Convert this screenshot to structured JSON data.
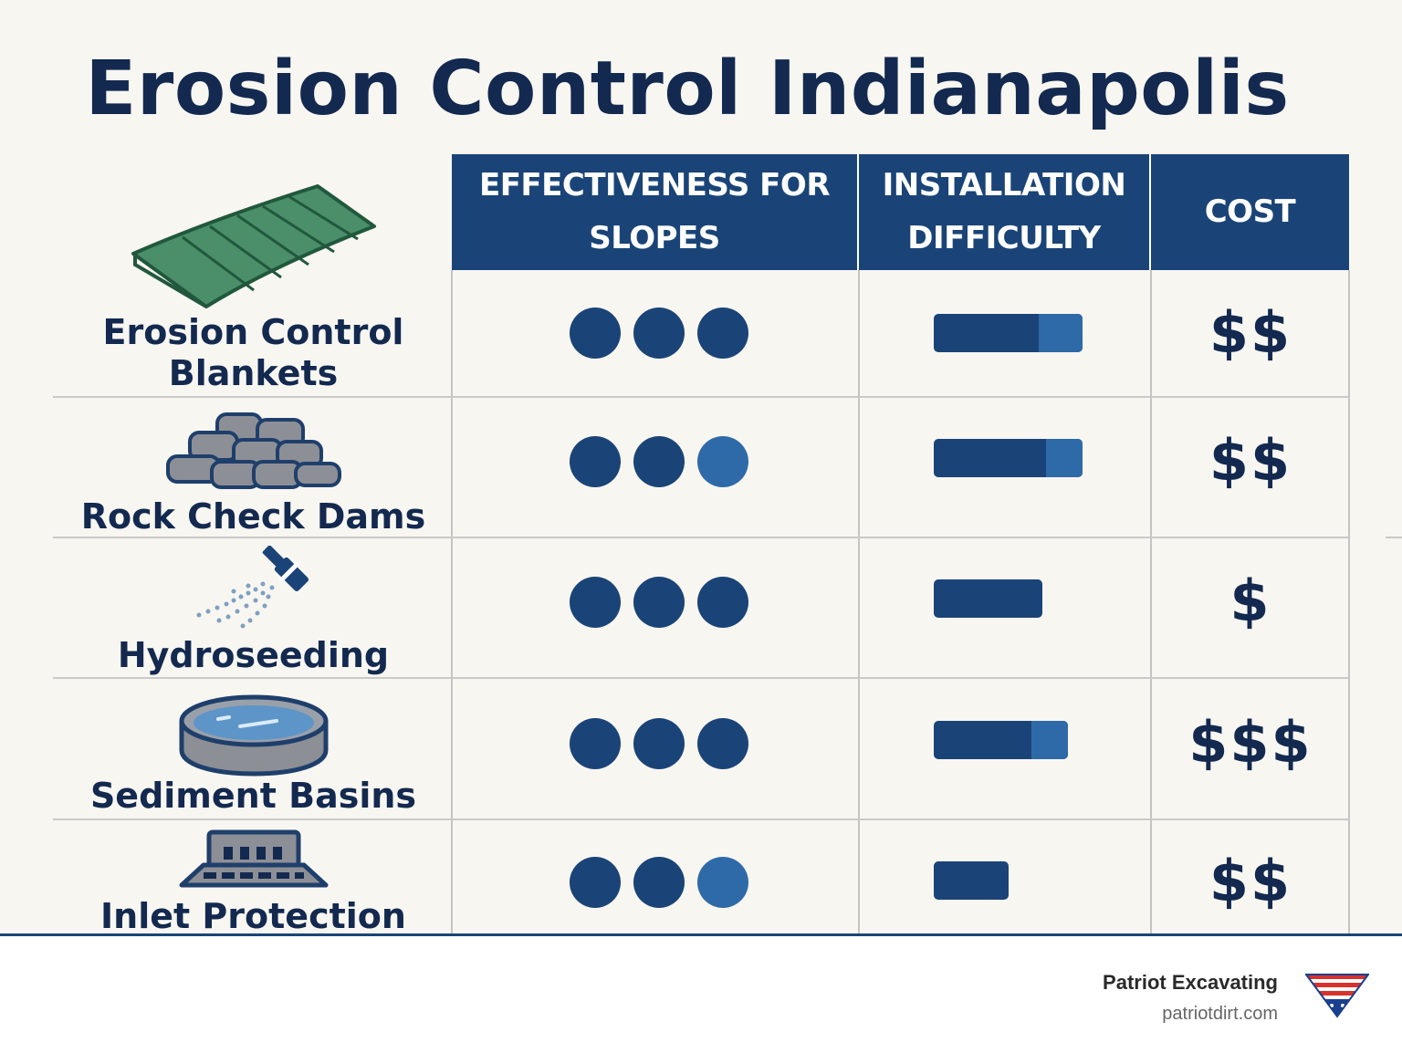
{
  "title": "Erosion Control Indianapolis",
  "columns": {
    "effectiveness": "EFFECTIVENESS FOR SLOPES",
    "installation": "INSTALLATION DIFFICULTY",
    "cost": "COST"
  },
  "rows": [
    {
      "label": "Erosion Control Blankets",
      "icon": "erosion-blanket-icon",
      "effectiveness": {
        "dark": 3,
        "light": 0
      },
      "difficulty": 1.0,
      "cost": "$$"
    },
    {
      "label": "Rock Check Dams",
      "icon": "rock-pile-icon",
      "effectiveness": {
        "dark": 2,
        "light": 1
      },
      "difficulty": 1.0,
      "cost": "$$"
    },
    {
      "label": "Hydroseeding",
      "icon": "spray-nozzle-icon",
      "effectiveness": {
        "dark": 3,
        "light": 0
      },
      "difficulty": 0.73,
      "cost": "$"
    },
    {
      "label": "Sediment Basins",
      "icon": "basin-icon",
      "effectiveness": {
        "dark": 3,
        "light": 0
      },
      "difficulty": 0.9,
      "cost": "$$$"
    },
    {
      "label": "Inlet Protection",
      "icon": "storm-drain-icon",
      "effectiveness": {
        "dark": 2,
        "light": 1
      },
      "difficulty": 0.5,
      "cost": "$$"
    }
  ],
  "colors": {
    "primary": "#1a4477",
    "accent": "#2f6aa8",
    "title": "#13294f"
  },
  "footer": {
    "company": "Patriot Excavating",
    "url": "patriotdirt.com",
    "logo_icon": "patriot-shield-icon"
  }
}
